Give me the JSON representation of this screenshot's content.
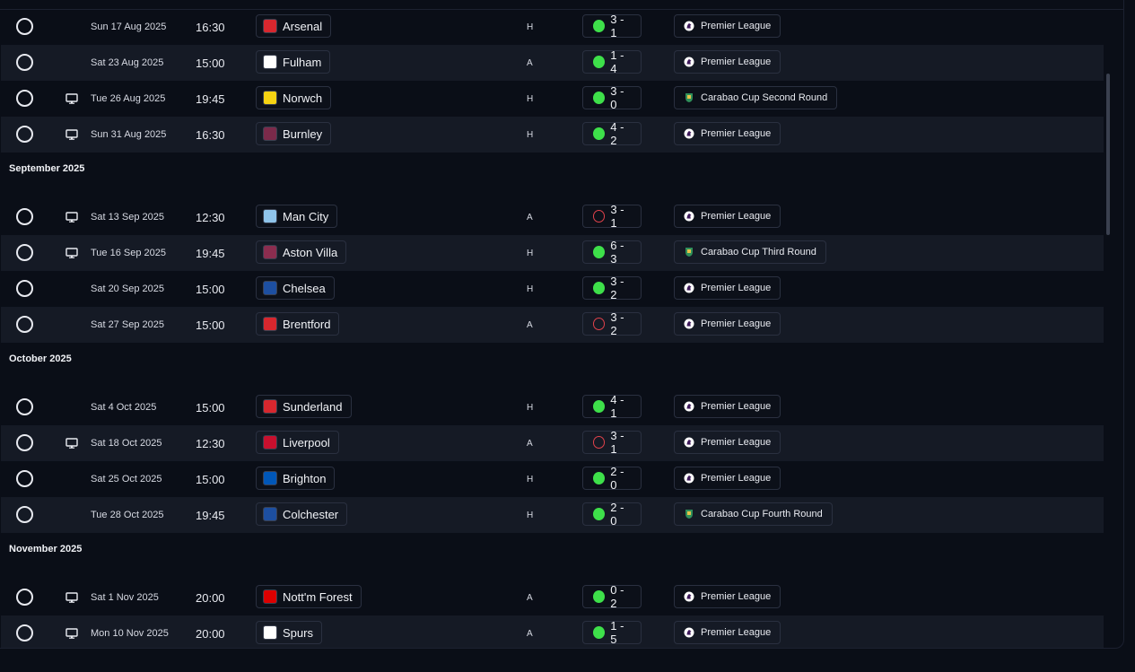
{
  "colors": {
    "win": "#3ee04a",
    "loss": "#e0424b",
    "background": "#0a0e17",
    "row_alt": "#151a25"
  },
  "groups": [
    {
      "month": "",
      "rows": [
        {
          "tv": false,
          "date": "Sun 17 Aug 2025",
          "time": "16:30",
          "team": "Arsenal",
          "crest_color": "#d7272e",
          "ha": "H",
          "result": "win",
          "score": "3 - 1",
          "competition": "Premier League",
          "comp_icon": "premier-league-icon"
        },
        {
          "tv": false,
          "date": "Sat 23 Aug 2025",
          "time": "15:00",
          "team": "Fulham",
          "crest_color": "#ffffff",
          "ha": "A",
          "result": "win",
          "score": "1 - 4",
          "competition": "Premier League",
          "comp_icon": "premier-league-icon"
        },
        {
          "tv": true,
          "date": "Tue 26 Aug 2025",
          "time": "19:45",
          "team": "Norwch",
          "crest_color": "#f5d312",
          "ha": "H",
          "result": "win",
          "score": "3 - 0",
          "competition": "Carabao Cup Second Round",
          "comp_icon": "carabao-cup-icon"
        },
        {
          "tv": true,
          "date": "Sun 31 Aug 2025",
          "time": "16:30",
          "team": "Burnley",
          "crest_color": "#7b2a4a",
          "ha": "H",
          "result": "win",
          "score": "4 - 2",
          "competition": "Premier League",
          "comp_icon": "premier-league-icon"
        }
      ]
    },
    {
      "month": "September 2025",
      "rows": [
        {
          "tv": true,
          "date": "Sat 13 Sep 2025",
          "time": "12:30",
          "team": "Man City",
          "crest_color": "#8fc4ea",
          "ha": "A",
          "result": "loss",
          "score": "3 - 1",
          "competition": "Premier League",
          "comp_icon": "premier-league-icon"
        },
        {
          "tv": true,
          "date": "Tue 16 Sep 2025",
          "time": "19:45",
          "team": "Aston Villa",
          "crest_color": "#8b2d4f",
          "ha": "H",
          "result": "win",
          "score": "6 - 3",
          "competition": "Carabao Cup Third Round",
          "comp_icon": "carabao-cup-icon"
        },
        {
          "tv": false,
          "date": "Sat 20 Sep 2025",
          "time": "15:00",
          "team": "Chelsea",
          "crest_color": "#1d4fa1",
          "ha": "H",
          "result": "win",
          "score": "3 - 2",
          "competition": "Premier League",
          "comp_icon": "premier-league-icon"
        },
        {
          "tv": false,
          "date": "Sat 27 Sep 2025",
          "time": "15:00",
          "team": "Brentford",
          "crest_color": "#d7272e",
          "ha": "A",
          "result": "loss",
          "score": "3 - 2",
          "competition": "Premier League",
          "comp_icon": "premier-league-icon"
        }
      ]
    },
    {
      "month": "October 2025",
      "rows": [
        {
          "tv": false,
          "date": "Sat 4 Oct 2025",
          "time": "15:00",
          "team": "Sunderland",
          "crest_color": "#d7272e",
          "ha": "H",
          "result": "win",
          "score": "4 - 1",
          "competition": "Premier League",
          "comp_icon": "premier-league-icon"
        },
        {
          "tv": true,
          "date": "Sat 18 Oct 2025",
          "time": "12:30",
          "team": "Liverpool",
          "crest_color": "#c8102e",
          "ha": "A",
          "result": "loss",
          "score": "3 - 1",
          "competition": "Premier League",
          "comp_icon": "premier-league-icon"
        },
        {
          "tv": false,
          "date": "Sat 25 Oct 2025",
          "time": "15:00",
          "team": "Brighton",
          "crest_color": "#0057b8",
          "ha": "H",
          "result": "win",
          "score": "2 - 0",
          "competition": "Premier League",
          "comp_icon": "premier-league-icon"
        },
        {
          "tv": false,
          "date": "Tue 28 Oct 2025",
          "time": "19:45",
          "team": "Colchester",
          "crest_color": "#1d4fa1",
          "ha": "H",
          "result": "win",
          "score": "2 - 0",
          "competition": "Carabao Cup Fourth Round",
          "comp_icon": "carabao-cup-icon"
        }
      ]
    },
    {
      "month": "November 2025",
      "rows": [
        {
          "tv": true,
          "date": "Sat 1 Nov 2025",
          "time": "20:00",
          "team": "Nott'm Forest",
          "crest_color": "#dd0000",
          "ha": "A",
          "result": "win",
          "score": "0 - 2",
          "competition": "Premier League",
          "comp_icon": "premier-league-icon"
        },
        {
          "tv": true,
          "date": "Mon 10 Nov 2025",
          "time": "20:00",
          "team": "Spurs",
          "crest_color": "#ffffff",
          "ha": "A",
          "result": "win",
          "score": "1 - 5",
          "competition": "Premier League",
          "comp_icon": "premier-league-icon"
        }
      ]
    }
  ]
}
